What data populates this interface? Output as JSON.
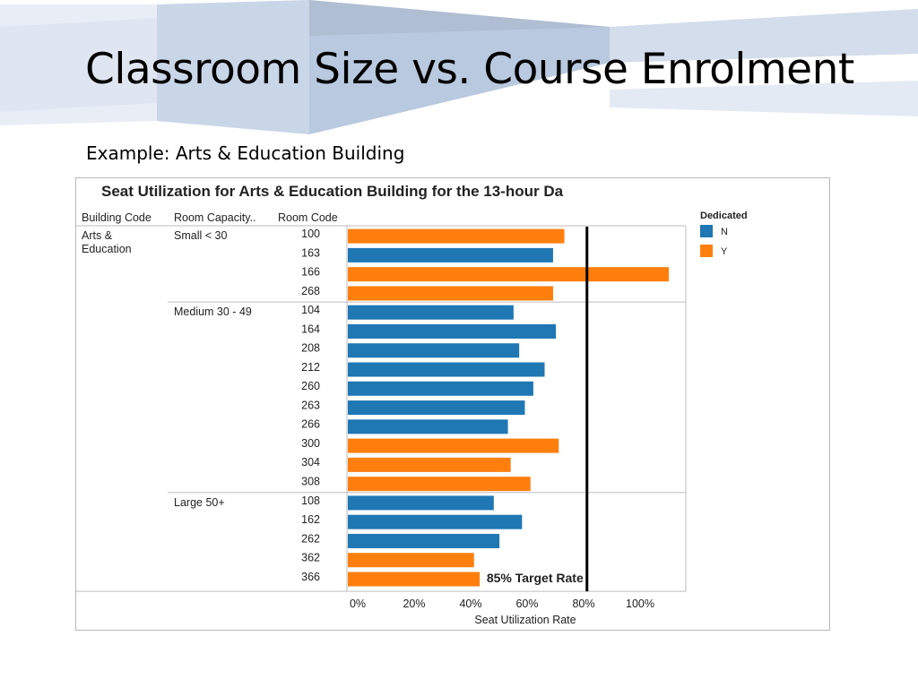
{
  "slide": {
    "title": "Classroom Size vs. Course Enrolment",
    "subtitle": "Example: Arts & Education Building"
  },
  "colors": {
    "N": "#1f77b4",
    "Y": "#ff7f0e",
    "target_line": "#000000",
    "divider": "#bdbdbd"
  },
  "chart_data": {
    "type": "bar",
    "orientation": "horizontal",
    "title": "Seat Utilization for Arts & Education Building for the 13-hour Da",
    "xlabel": "Seat Utilization Rate",
    "xlim": [
      0,
      1.2
    ],
    "x_ticks": [
      {
        "value": 0,
        "label": "0%"
      },
      {
        "value": 0.2,
        "label": "20%"
      },
      {
        "value": 0.4,
        "label": "40%"
      },
      {
        "value": 0.6,
        "label": "60%"
      },
      {
        "value": 0.8,
        "label": "80%"
      },
      {
        "value": 1.0,
        "label": "100%"
      }
    ],
    "column_headers": [
      "Building Code",
      "Room Capacity..",
      "Room Code"
    ],
    "building": "Arts & Education",
    "legend": {
      "title": "Dedicated",
      "position": "top-right",
      "entries": [
        {
          "key": "N",
          "label": "N"
        },
        {
          "key": "Y",
          "label": "Y"
        }
      ]
    },
    "reference_line": {
      "value": 0.85,
      "label": "85% Target Rate"
    },
    "groups": [
      {
        "name": "Small < 30",
        "rooms": [
          {
            "room": "100",
            "value": 0.77,
            "dedicated": "Y"
          },
          {
            "room": "163",
            "value": 0.73,
            "dedicated": "N"
          },
          {
            "room": "166",
            "value": 1.14,
            "dedicated": "Y"
          },
          {
            "room": "268",
            "value": 0.73,
            "dedicated": "Y"
          }
        ]
      },
      {
        "name": "Medium 30 - 49",
        "rooms": [
          {
            "room": "104",
            "value": 0.59,
            "dedicated": "N"
          },
          {
            "room": "164",
            "value": 0.74,
            "dedicated": "N"
          },
          {
            "room": "208",
            "value": 0.61,
            "dedicated": "N"
          },
          {
            "room": "212",
            "value": 0.7,
            "dedicated": "N"
          },
          {
            "room": "260",
            "value": 0.66,
            "dedicated": "N"
          },
          {
            "room": "263",
            "value": 0.63,
            "dedicated": "N"
          },
          {
            "room": "266",
            "value": 0.57,
            "dedicated": "N"
          },
          {
            "room": "300",
            "value": 0.75,
            "dedicated": "Y"
          },
          {
            "room": "304",
            "value": 0.58,
            "dedicated": "Y"
          },
          {
            "room": "308",
            "value": 0.65,
            "dedicated": "Y"
          }
        ]
      },
      {
        "name": "Large 50+",
        "rooms": [
          {
            "room": "108",
            "value": 0.52,
            "dedicated": "N"
          },
          {
            "room": "162",
            "value": 0.62,
            "dedicated": "N"
          },
          {
            "room": "262",
            "value": 0.54,
            "dedicated": "N"
          },
          {
            "room": "362",
            "value": 0.45,
            "dedicated": "Y"
          },
          {
            "room": "366",
            "value": 0.47,
            "dedicated": "Y"
          }
        ]
      }
    ]
  }
}
